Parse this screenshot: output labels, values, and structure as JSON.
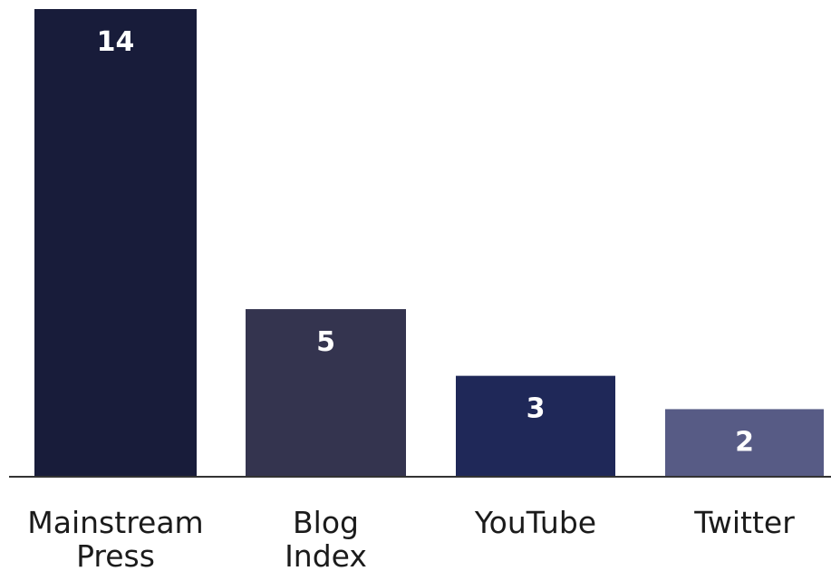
{
  "chart_data": {
    "type": "bar",
    "categories": [
      [
        "Mainstream",
        "Press"
      ],
      [
        "Blog",
        "Index"
      ],
      [
        "YouTube"
      ],
      [
        "Twitter"
      ]
    ],
    "values": [
      14,
      5,
      3,
      2
    ],
    "data_labels": [
      "14",
      "5",
      "3",
      "2"
    ],
    "bar_colors": [
      "#181c3a",
      "#34344f",
      "#1f2858",
      "#575b85"
    ],
    "axis_color": "#333333",
    "ylim": [
      0,
      14
    ],
    "grid": false,
    "title": "",
    "xlabel": "",
    "ylabel": ""
  }
}
